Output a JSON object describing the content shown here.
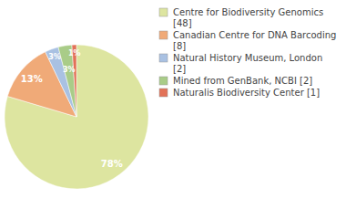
{
  "chart_data": {
    "type": "pie",
    "categories": [
      "Centre for Biodiversity Genomics [48]",
      "Canadian Centre for DNA Barcoding [8]",
      "Natural History Museum, London [2]",
      "Mined from GenBank, NCBI [2]",
      "Naturalis Biodiversity Center [1]"
    ],
    "values": [
      78,
      13,
      3,
      3,
      1
    ],
    "value_labels": [
      "78%",
      "13%",
      "3%",
      "3%",
      "1%"
    ],
    "colors": [
      "#dde5a0",
      "#f0aa78",
      "#a9c1e2",
      "#a9cc88",
      "#e27258"
    ],
    "data_labels": true,
    "legend": "right"
  }
}
